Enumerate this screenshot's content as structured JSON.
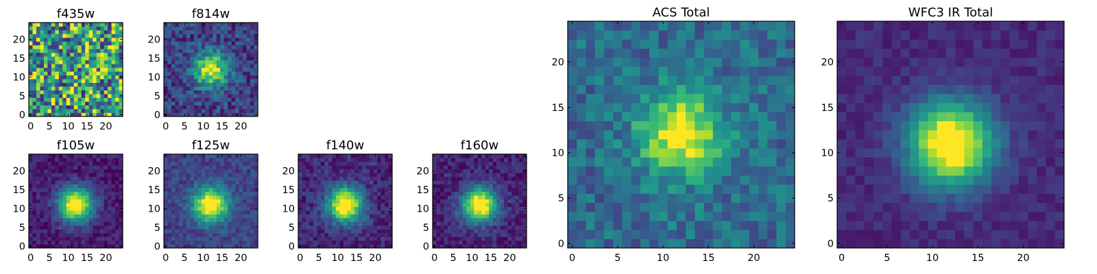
{
  "chart_data": [
    {
      "type": "heatmap",
      "title": "f435w",
      "grid_size": 25,
      "xticks": [
        "0",
        "5",
        "10",
        "15",
        "20"
      ],
      "yticks": [
        "0",
        "5",
        "10",
        "15",
        "20"
      ],
      "xlim": [
        0,
        25
      ],
      "ylim": [
        0,
        25
      ],
      "colormap": "viridis",
      "center": [
        12,
        12
      ],
      "peak_level": 0.0,
      "noise_level": 0.7,
      "base_level": 0.5,
      "seed": 11
    },
    {
      "type": "heatmap",
      "title": "f814w",
      "grid_size": 25,
      "xticks": [
        "0",
        "5",
        "10",
        "15",
        "20"
      ],
      "yticks": [
        "0",
        "5",
        "10",
        "15",
        "20"
      ],
      "xlim": [
        0,
        25
      ],
      "ylim": [
        0,
        25
      ],
      "colormap": "viridis",
      "center": [
        12,
        12
      ],
      "peak_level": 0.75,
      "noise_level": 0.35,
      "base_level": 0.2,
      "seed": 23
    },
    {
      "type": "heatmap",
      "title": "f105w",
      "grid_size": 25,
      "xticks": [
        "0",
        "5",
        "10",
        "15",
        "20"
      ],
      "yticks": [
        "0",
        "5",
        "10",
        "15",
        "20"
      ],
      "xlim": [
        0,
        25
      ],
      "ylim": [
        0,
        25
      ],
      "colormap": "viridis",
      "center": [
        12,
        11
      ],
      "peak_level": 1.0,
      "noise_level": 0.18,
      "base_level": 0.08,
      "seed": 37
    },
    {
      "type": "heatmap",
      "title": "f125w",
      "grid_size": 25,
      "xticks": [
        "0",
        "5",
        "10",
        "15",
        "20"
      ],
      "yticks": [
        "0",
        "5",
        "10",
        "15",
        "20"
      ],
      "xlim": [
        0,
        25
      ],
      "ylim": [
        0,
        25
      ],
      "colormap": "viridis",
      "center": [
        12,
        11
      ],
      "peak_level": 0.9,
      "noise_level": 0.2,
      "base_level": 0.2,
      "seed": 41
    },
    {
      "type": "heatmap",
      "title": "f140w",
      "grid_size": 25,
      "xticks": [
        "0",
        "5",
        "10",
        "15",
        "20"
      ],
      "yticks": [
        "0",
        "5",
        "10",
        "15",
        "20"
      ],
      "xlim": [
        0,
        25
      ],
      "ylim": [
        0,
        25
      ],
      "colormap": "viridis",
      "center": [
        12,
        11
      ],
      "peak_level": 1.0,
      "noise_level": 0.22,
      "base_level": 0.12,
      "seed": 53
    },
    {
      "type": "heatmap",
      "title": "f160w",
      "grid_size": 25,
      "xticks": [
        "0",
        "5",
        "10",
        "15",
        "20"
      ],
      "yticks": [
        "0",
        "5",
        "10",
        "15",
        "20"
      ],
      "xlim": [
        0,
        25
      ],
      "ylim": [
        0,
        25
      ],
      "colormap": "viridis",
      "center": [
        12,
        11
      ],
      "peak_level": 1.0,
      "noise_level": 0.2,
      "base_level": 0.1,
      "seed": 67
    },
    {
      "type": "heatmap",
      "title": "ACS Total",
      "grid_size": 25,
      "xticks": [
        "0",
        "5",
        "10",
        "15",
        "20"
      ],
      "yticks": [
        "0",
        "5",
        "10",
        "15",
        "20"
      ],
      "xlim": [
        0,
        25
      ],
      "ylim": [
        0,
        25
      ],
      "colormap": "viridis",
      "center": [
        12,
        12
      ],
      "peak_level": 0.65,
      "noise_level": 0.3,
      "base_level": 0.35,
      "seed": 79
    },
    {
      "type": "heatmap",
      "title": "WFC3 IR Total",
      "grid_size": 25,
      "xticks": [
        "0",
        "5",
        "10",
        "15",
        "20"
      ],
      "yticks": [
        "0",
        "5",
        "10",
        "15",
        "20"
      ],
      "xlim": [
        0,
        25
      ],
      "ylim": [
        0,
        25
      ],
      "colormap": "viridis",
      "center": [
        12,
        11
      ],
      "peak_level": 1.0,
      "noise_level": 0.12,
      "base_level": 0.12,
      "seed": 97
    }
  ],
  "colors": {
    "viridis_stops": [
      "#440154",
      "#472d7b",
      "#3b528b",
      "#2c728e",
      "#21918c",
      "#28ae80",
      "#5ec962",
      "#addc30",
      "#fde725"
    ]
  }
}
